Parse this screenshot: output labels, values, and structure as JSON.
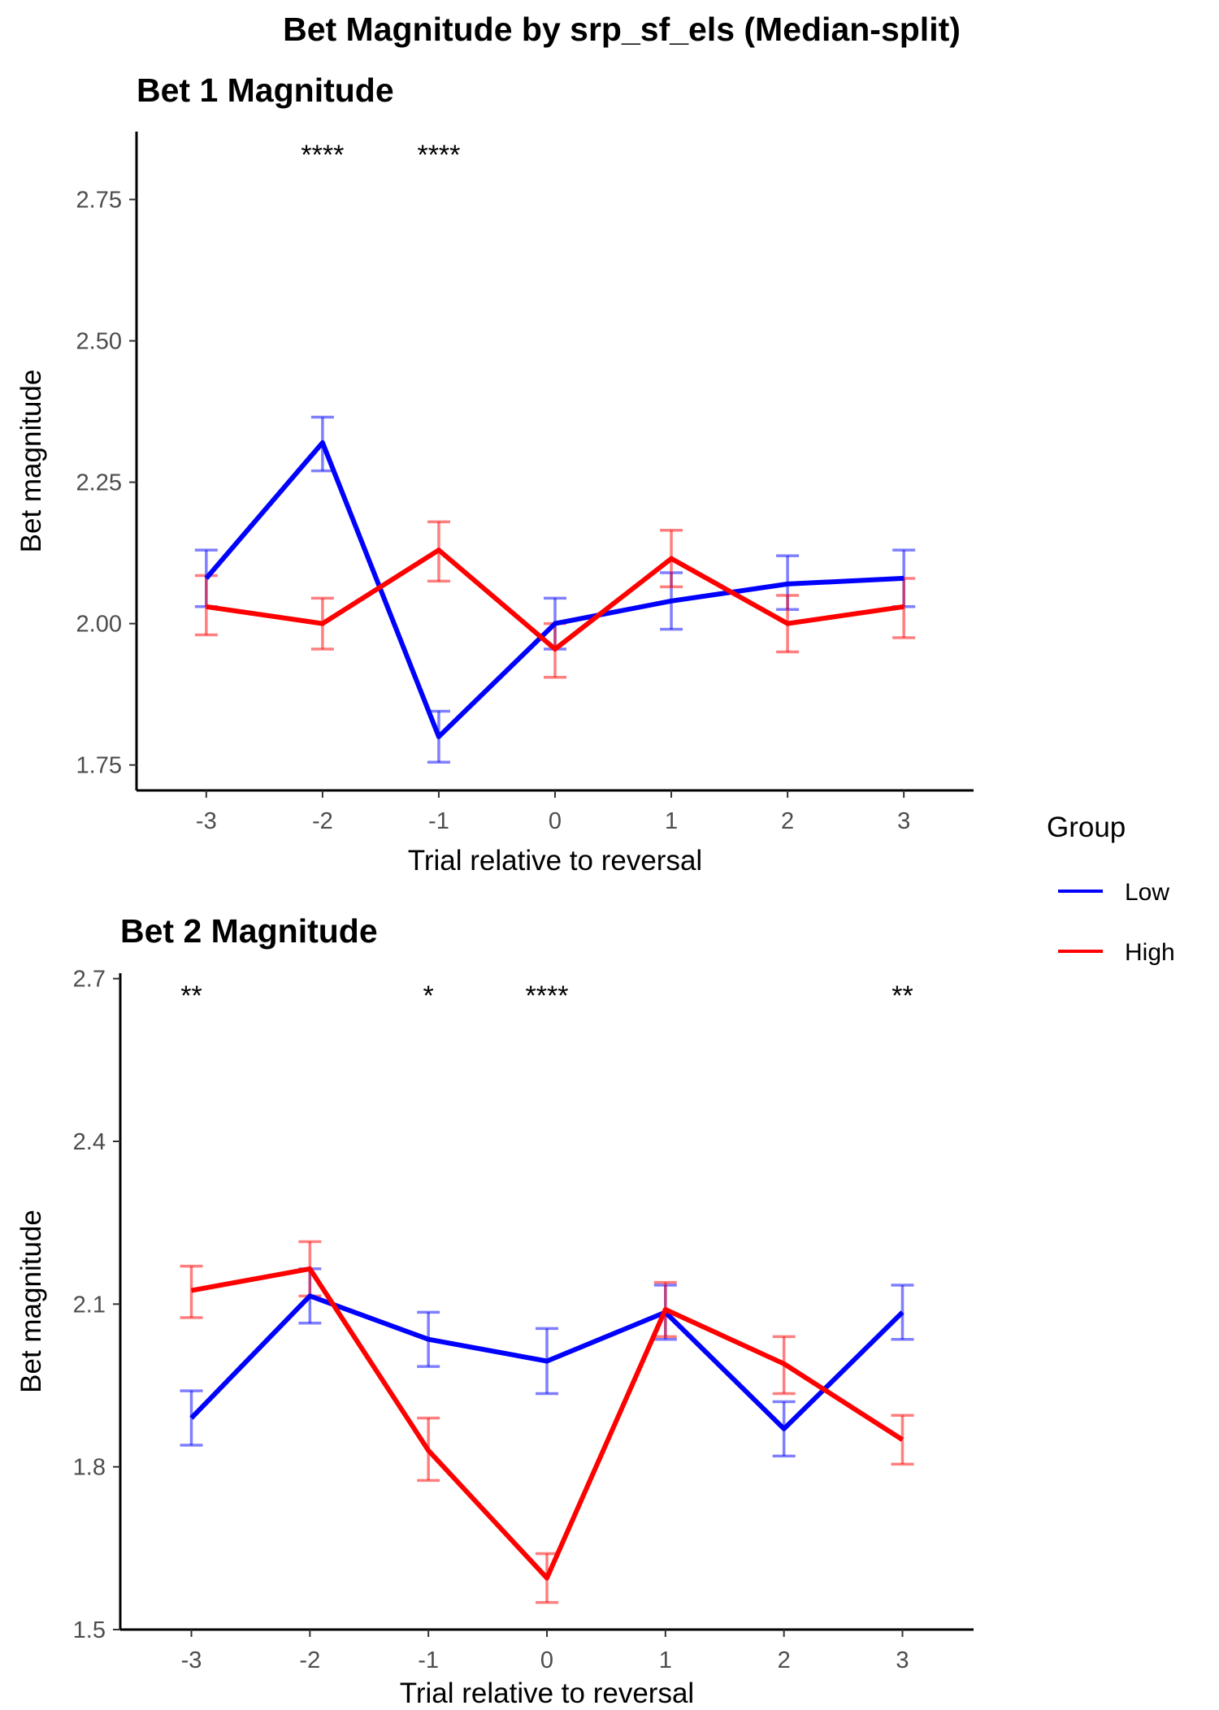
{
  "figure_title": "Bet Magnitude by srp_sf_els (Median-split)",
  "legend": {
    "title": "Group",
    "placement": "right",
    "entries": [
      {
        "label": "Low",
        "color": "#0000ff"
      },
      {
        "label": "High",
        "color": "#ff0000"
      }
    ]
  },
  "chart_data": [
    {
      "type": "line",
      "title": "Bet 1 Magnitude",
      "xlabel": "Trial relative to reversal",
      "ylabel": "Bet magnitude",
      "x": [
        -3,
        -2,
        -1,
        0,
        1,
        2,
        3
      ],
      "x_tick_labels": [
        "-3",
        "-2",
        "-1",
        "0",
        "1",
        "2",
        "3"
      ],
      "xlim": [
        -3.6,
        3.6
      ],
      "ylim": [
        1.705,
        2.87
      ],
      "y_ticks": [
        1.75,
        2.0,
        2.25,
        2.5,
        2.75
      ],
      "y_tick_labels": [
        "1.75",
        "2.00",
        "2.25",
        "2.50",
        "2.75"
      ],
      "grid": false,
      "series": [
        {
          "name": "Low",
          "color": "#0000ff",
          "values": [
            2.08,
            2.32,
            1.8,
            2.0,
            2.04,
            2.07,
            2.08
          ],
          "error_low": [
            2.03,
            2.27,
            1.755,
            1.955,
            1.99,
            2.025,
            2.03
          ],
          "error_high": [
            2.13,
            2.365,
            1.845,
            2.045,
            2.09,
            2.12,
            2.13
          ]
        },
        {
          "name": "High",
          "color": "#ff0000",
          "values": [
            2.03,
            2.0,
            2.13,
            1.955,
            2.115,
            2.0,
            2.03
          ],
          "error_low": [
            1.98,
            1.955,
            2.075,
            1.905,
            2.065,
            1.95,
            1.975
          ],
          "error_high": [
            2.085,
            2.045,
            2.18,
            2.0,
            2.165,
            2.05,
            2.08
          ]
        }
      ],
      "annotations": [
        {
          "x": -2,
          "label": "****"
        },
        {
          "x": -1,
          "label": "****"
        }
      ]
    },
    {
      "type": "line",
      "title": "Bet 2 Magnitude",
      "xlabel": "Trial relative to reversal",
      "ylabel": "Bet magnitude",
      "x": [
        -3,
        -2,
        -1,
        0,
        1,
        2,
        3
      ],
      "x_tick_labels": [
        "-3",
        "-2",
        "-1",
        "0",
        "1",
        "2",
        "3"
      ],
      "xlim": [
        -3.6,
        3.6
      ],
      "ylim": [
        1.5,
        2.71
      ],
      "y_ticks": [
        1.5,
        1.8,
        2.1,
        2.4,
        2.7
      ],
      "y_tick_labels": [
        "1.5",
        "1.8",
        "2.1",
        "2.4",
        "2.7"
      ],
      "grid": false,
      "series": [
        {
          "name": "Low",
          "color": "#0000ff",
          "values": [
            1.89,
            2.115,
            2.035,
            1.995,
            2.085,
            1.87,
            2.085
          ],
          "error_low": [
            1.84,
            2.065,
            1.985,
            1.935,
            2.035,
            1.82,
            2.035
          ],
          "error_high": [
            1.94,
            2.165,
            2.085,
            2.055,
            2.135,
            1.92,
            2.135
          ]
        },
        {
          "name": "High",
          "color": "#ff0000",
          "values": [
            2.125,
            2.165,
            1.83,
            1.595,
            2.09,
            1.99,
            1.85
          ],
          "error_low": [
            2.075,
            2.115,
            1.775,
            1.55,
            2.04,
            1.935,
            1.805
          ],
          "error_high": [
            2.17,
            2.215,
            1.89,
            1.64,
            2.14,
            2.04,
            1.895
          ]
        }
      ],
      "annotations": [
        {
          "x": -3,
          "label": "**"
        },
        {
          "x": -1,
          "label": "*"
        },
        {
          "x": 0,
          "label": "****"
        },
        {
          "x": 3,
          "label": "**"
        }
      ]
    }
  ]
}
